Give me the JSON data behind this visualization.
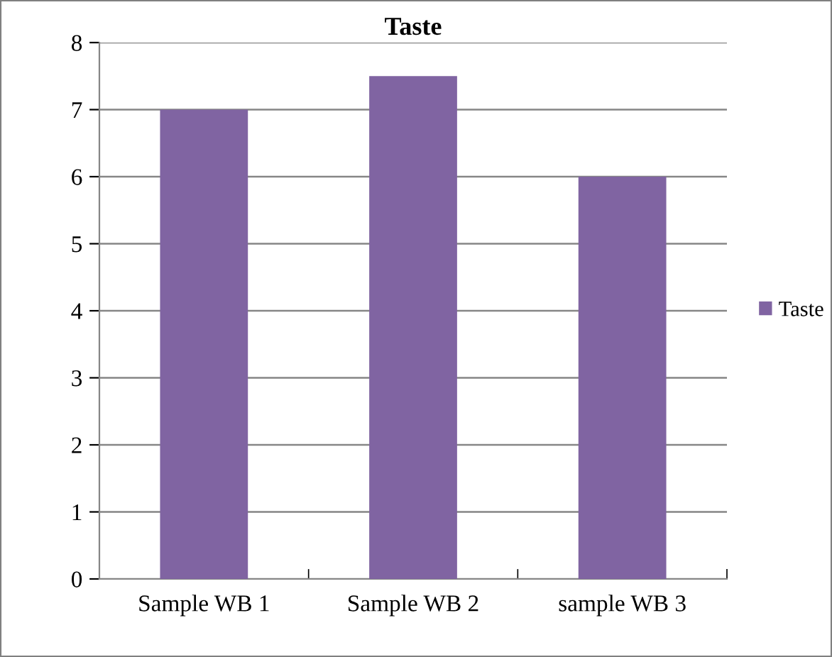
{
  "chart_data": {
    "type": "bar",
    "title": "Taste",
    "categories": [
      "Sample WB 1",
      "Sample WB 2",
      "sample WB 3"
    ],
    "series": [
      {
        "name": "Taste",
        "color": "#8064a2",
        "values": [
          7,
          7.5,
          6
        ]
      }
    ],
    "ylim": [
      0,
      8
    ],
    "yticks": [
      0,
      1,
      2,
      3,
      4,
      5,
      6,
      7,
      8
    ],
    "grid": "y",
    "legend": "right"
  }
}
